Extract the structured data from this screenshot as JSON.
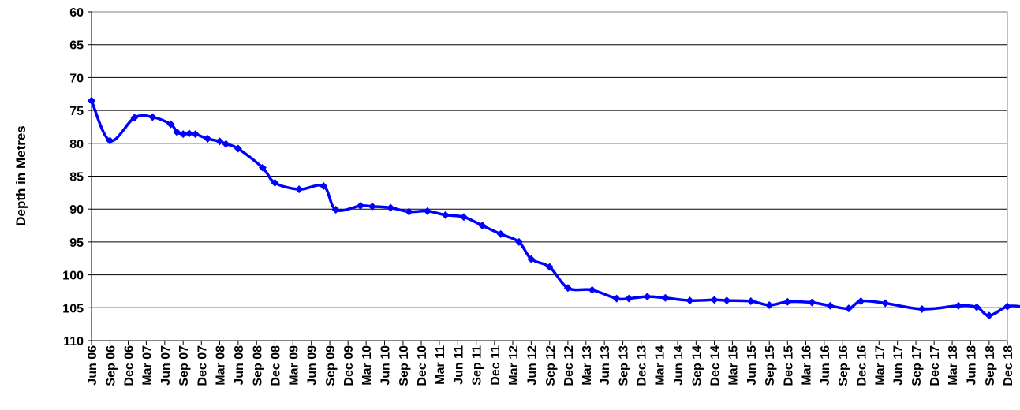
{
  "chart_data": {
    "type": "line",
    "title": "",
    "ylabel": "Depth in Metres",
    "xlabel": "",
    "y_inverted": true,
    "ylim": [
      60,
      110
    ],
    "y_ticks": [
      "60",
      "65",
      "70",
      "75",
      "80",
      "85",
      "90",
      "95",
      "100",
      "105",
      "110"
    ],
    "x_ticks": [
      "Jun 06",
      "Sep 06",
      "Dec 06",
      "Mar 07",
      "Jun 07",
      "Sep 07",
      "Dec 07",
      "Mar 08",
      "Jun 08",
      "Sep 08",
      "Dec 08",
      "Mar 09",
      "Jun 09",
      "Sep 09",
      "Dec 09",
      "Mar 10",
      "Jun 10",
      "Sep 10",
      "Dec 10",
      "Mar 11",
      "Jun 11",
      "Sep 11",
      "Dec 11",
      "Mar 12",
      "Jun 12",
      "Sep 12",
      "Dec 12",
      "Mar 13",
      "Jun 13",
      "Sep 13",
      "Dec 13",
      "Mar 14",
      "Jun 14",
      "Sep 14",
      "Dec 14",
      "Mar 15",
      "Jun 15",
      "Sep 15",
      "Dec 15",
      "Mar 16",
      "Jun 16",
      "Sep 16",
      "Dec 16",
      "Mar 17",
      "Jun 17",
      "Sep 17",
      "Dec 17",
      "Mar 18",
      "Jun 18",
      "Sep 18",
      "Dec 18"
    ],
    "grid": "horizontal",
    "line_color": "#0000FF",
    "marker": "diamond",
    "series": [
      {
        "name": "",
        "points": [
          [
            "2006-06-01",
            73.5
          ],
          [
            "2006-09-01",
            79.6
          ],
          [
            "2007-01-01",
            76.1
          ],
          [
            "2007-04-01",
            76.0
          ],
          [
            "2007-07-01",
            77.1
          ],
          [
            "2007-08-01",
            78.3
          ],
          [
            "2007-09-01",
            78.6
          ],
          [
            "2007-10-01",
            78.5
          ],
          [
            "2007-11-01",
            78.6
          ],
          [
            "2008-01-01",
            79.3
          ],
          [
            "2008-03-01",
            79.7
          ],
          [
            "2008-04-01",
            80.1
          ],
          [
            "2008-06-01",
            80.8
          ],
          [
            "2008-10-01",
            83.7
          ],
          [
            "2008-12-01",
            86.0
          ],
          [
            "2009-04-01",
            87.0
          ],
          [
            "2009-08-01",
            86.5
          ],
          [
            "2009-10-01",
            90.1
          ],
          [
            "2010-02-01",
            89.5
          ],
          [
            "2010-04-01",
            89.6
          ],
          [
            "2010-07-01",
            89.8
          ],
          [
            "2010-10-01",
            90.4
          ],
          [
            "2011-01-01",
            90.3
          ],
          [
            "2011-04-01",
            90.9
          ],
          [
            "2011-07-01",
            91.2
          ],
          [
            "2011-10-01",
            92.5
          ],
          [
            "2012-01-01",
            93.8
          ],
          [
            "2012-04-01",
            95.0
          ],
          [
            "2012-06-01",
            97.6
          ],
          [
            "2012-09-01",
            98.8
          ],
          [
            "2012-12-01",
            102.0
          ],
          [
            "2013-04-01",
            102.3
          ],
          [
            "2013-08-01",
            103.6
          ],
          [
            "2013-10-01",
            103.6
          ],
          [
            "2014-01-01",
            103.3
          ],
          [
            "2014-04-01",
            103.5
          ],
          [
            "2014-08-01",
            103.9
          ],
          [
            "2014-12-01",
            103.8
          ],
          [
            "2015-02-01",
            103.9
          ],
          [
            "2015-06-01",
            104.0
          ],
          [
            "2015-09-01",
            104.6
          ],
          [
            "2015-12-01",
            104.1
          ],
          [
            "2016-04-01",
            104.2
          ],
          [
            "2016-07-01",
            104.7
          ],
          [
            "2016-10-01",
            105.1
          ],
          [
            "2016-12-01",
            104.0
          ],
          [
            "2017-04-01",
            104.3
          ],
          [
            "2017-10-01",
            105.2
          ],
          [
            "2018-04-01",
            104.7
          ],
          [
            "2018-07-01",
            104.9
          ],
          [
            "2018-09-01",
            106.2
          ],
          [
            "2018-12-01",
            104.8
          ],
          [
            "2019-03-01",
            104.9
          ]
        ]
      }
    ]
  }
}
